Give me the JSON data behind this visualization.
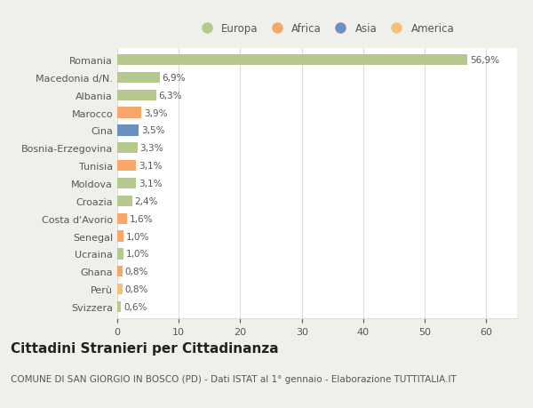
{
  "categories": [
    "Svizzera",
    "Perù",
    "Ghana",
    "Ucraina",
    "Senegal",
    "Costa d'Avorio",
    "Croazia",
    "Moldova",
    "Tunisia",
    "Bosnia-Erzegovina",
    "Cina",
    "Marocco",
    "Albania",
    "Macedonia d/N.",
    "Romania"
  ],
  "values": [
    0.6,
    0.8,
    0.8,
    1.0,
    1.0,
    1.6,
    2.4,
    3.1,
    3.1,
    3.3,
    3.5,
    3.9,
    6.3,
    6.9,
    56.9
  ],
  "colors": [
    "#b5c98e",
    "#f5c07a",
    "#f5a86a",
    "#b5c98e",
    "#f5a86a",
    "#f5a86a",
    "#b5c98e",
    "#b5c98e",
    "#f5a86a",
    "#b5c98e",
    "#6a8fc0",
    "#f5a86a",
    "#b5c98e",
    "#b5c98e",
    "#b5c98e"
  ],
  "labels": [
    "0,6%",
    "0,8%",
    "0,8%",
    "1,0%",
    "1,0%",
    "1,6%",
    "2,4%",
    "3,1%",
    "3,1%",
    "3,3%",
    "3,5%",
    "3,9%",
    "6,3%",
    "6,9%",
    "56,9%"
  ],
  "legend_names": [
    "Europa",
    "Africa",
    "Asia",
    "America"
  ],
  "legend_colors": [
    "#b5c98e",
    "#f5a86a",
    "#6a8fc0",
    "#f5c07a"
  ],
  "title": "Cittadini Stranieri per Cittadinanza",
  "subtitle": "COMUNE DI SAN GIORGIO IN BOSCO (PD) - Dati ISTAT al 1° gennaio - Elaborazione TUTTITALIA.IT",
  "xlim": [
    0,
    65
  ],
  "background_color": "#f0f0eb",
  "plot_background": "#ffffff",
  "grid_color": "#dddddd",
  "text_color": "#555555",
  "title_fontsize": 11,
  "subtitle_fontsize": 7.5,
  "label_fontsize": 7.5,
  "tick_fontsize": 8
}
